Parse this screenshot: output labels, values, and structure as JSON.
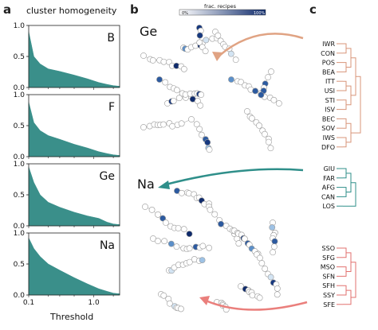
{
  "panel_a": {
    "letter": "a",
    "title": "cluster homogeneity",
    "x_label": "Threshold",
    "x_ticks": [
      "0.1",
      "1.0"
    ],
    "y_ticks": [
      "0.0",
      "0.5",
      "1.0"
    ],
    "fill_color": "#3a8f8a"
  },
  "panel_b": {
    "letter": "b",
    "colorbar": {
      "title": "frac. recipes",
      "min_label": "0%",
      "max_label": "100%",
      "low_color": "#ffffff",
      "high_color": "#0e2a6b"
    },
    "network_labels": [
      "Ge",
      "Na"
    ]
  },
  "panel_c": {
    "letter": "c",
    "groups": [
      {
        "color": "#d8957a",
        "codes": [
          "IWR",
          "CON",
          "POS",
          "BEA",
          "ITT",
          "USI",
          "STI",
          "ISV",
          "BEC",
          "SOV",
          "IWS",
          "DFO"
        ]
      },
      {
        "color": "#2f8f8a",
        "codes": [
          "GIU",
          "FAR",
          "AFG",
          "CAN",
          "LOS"
        ]
      },
      {
        "color": "#e2716f",
        "codes": [
          "SSO",
          "SFG",
          "MSO",
          "SFN",
          "SFH",
          "SSY",
          "SFE"
        ]
      }
    ]
  },
  "chart_data": [
    {
      "type": "area",
      "label": "B",
      "x": [
        0.1,
        0.12,
        0.15,
        0.2,
        0.3,
        0.5,
        0.8,
        1.2,
        1.6,
        2.0,
        2.5
      ],
      "values": [
        0.9,
        0.5,
        0.38,
        0.3,
        0.26,
        0.2,
        0.14,
        0.08,
        0.05,
        0.03,
        0.02
      ],
      "ylim": [
        0,
        1
      ],
      "xscale": "log"
    },
    {
      "type": "area",
      "label": "F",
      "x": [
        0.1,
        0.12,
        0.15,
        0.2,
        0.3,
        0.5,
        0.8,
        1.2,
        1.6,
        2.0,
        2.5
      ],
      "values": [
        0.88,
        0.55,
        0.42,
        0.34,
        0.28,
        0.2,
        0.14,
        0.08,
        0.05,
        0.03,
        0.02
      ],
      "ylim": [
        0,
        1
      ],
      "xscale": "log"
    },
    {
      "type": "area",
      "label": "Ge",
      "x": [
        0.1,
        0.12,
        0.15,
        0.2,
        0.3,
        0.5,
        0.8,
        1.2,
        1.6,
        2.0,
        2.5
      ],
      "values": [
        0.95,
        0.7,
        0.5,
        0.38,
        0.3,
        0.22,
        0.16,
        0.12,
        0.06,
        0.03,
        0.02
      ],
      "ylim": [
        0,
        1
      ],
      "xscale": "log"
    },
    {
      "type": "area",
      "label": "Na",
      "x": [
        0.1,
        0.12,
        0.15,
        0.2,
        0.3,
        0.5,
        0.8,
        1.2,
        1.6,
        2.0,
        2.5
      ],
      "values": [
        0.92,
        0.75,
        0.62,
        0.5,
        0.4,
        0.28,
        0.18,
        0.1,
        0.06,
        0.03,
        0.02
      ],
      "ylim": [
        0,
        1
      ],
      "xscale": "log"
    }
  ]
}
